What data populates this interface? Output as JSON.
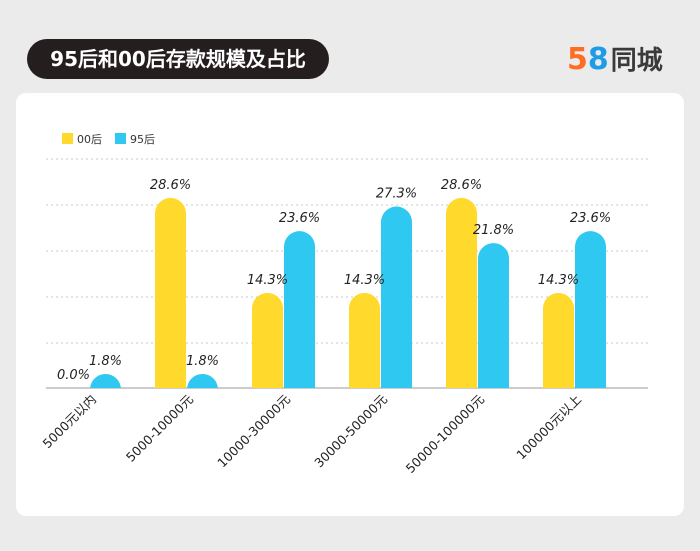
{
  "header": {
    "title": "95后和00后存款规模及占比",
    "logo_digit_5": "5",
    "logo_digit_8": "8",
    "logo_text": "同城"
  },
  "colors": {
    "series_00": "#ffd92b",
    "series_95": "#2ec8f0",
    "title_bg": "#241e1f",
    "page_bg": "#ebebeb"
  },
  "chart_data": {
    "type": "bar",
    "title": "95后和00后存款规模及占比",
    "categories": [
      "5000元以内",
      "5000-10000元",
      "10000-30000元",
      "30000-50000元",
      "50000-100000元",
      "100000元以上"
    ],
    "series": [
      {
        "name": "00后",
        "values": [
          0.0,
          28.6,
          14.3,
          14.3,
          28.6,
          14.3
        ],
        "labels": [
          "0.0%",
          "28.6%",
          "14.3%",
          "14.3%",
          "28.6%",
          "14.3%"
        ]
      },
      {
        "name": "95后",
        "values": [
          1.8,
          1.8,
          23.6,
          27.3,
          21.8,
          23.6
        ],
        "labels": [
          "1.8%",
          "1.8%",
          "23.6%",
          "27.3%",
          "21.8%",
          "23.6%"
        ]
      }
    ],
    "unit": "%",
    "ylim": [
      0,
      35
    ],
    "grid": true,
    "legend": "top-left"
  }
}
